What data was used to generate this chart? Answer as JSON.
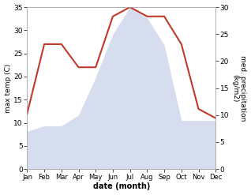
{
  "months": [
    "Jan",
    "Feb",
    "Mar",
    "Apr",
    "May",
    "Jun",
    "Jul",
    "Aug",
    "Sep",
    "Oct",
    "Nov",
    "Dec"
  ],
  "x": [
    1,
    2,
    3,
    4,
    5,
    6,
    7,
    8,
    9,
    10,
    11,
    12
  ],
  "temperature": [
    12,
    27,
    27,
    22,
    22,
    33,
    35,
    33,
    33,
    27,
    13,
    11
  ],
  "precipitation": [
    7,
    8,
    8,
    10,
    17,
    25,
    30,
    28,
    23,
    9,
    9,
    9
  ],
  "temp_color": "#c0392b",
  "precip_color": "#c5cfe8",
  "ylabel_left": "max temp (C)",
  "ylabel_right": "med. precipitation\n(kg/m2)",
  "xlabel": "date (month)",
  "ylim_left": [
    0,
    35
  ],
  "ylim_right": [
    0,
    30
  ],
  "yticks_left": [
    0,
    5,
    10,
    15,
    20,
    25,
    30,
    35
  ],
  "yticks_right": [
    0,
    5,
    10,
    15,
    20,
    25,
    30
  ],
  "background_color": "#ffffff",
  "temp_linewidth": 1.5
}
